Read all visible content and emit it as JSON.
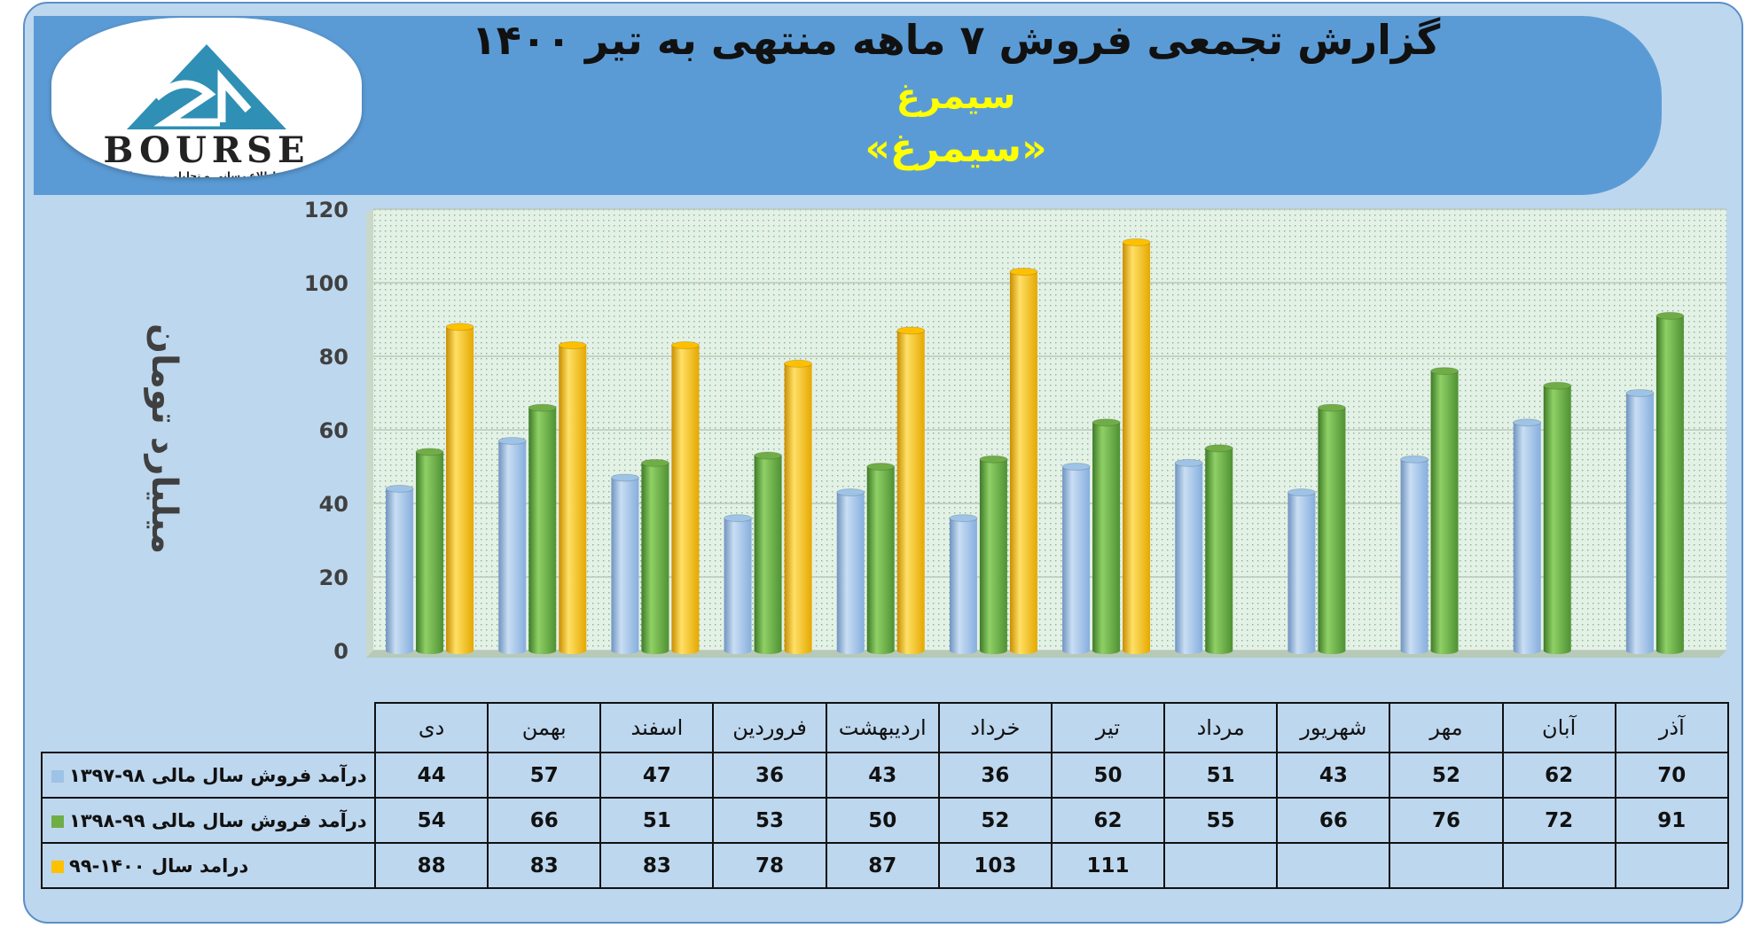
{
  "header": {
    "title": "گزارش تجمعی فروش ۷ ماهه منتهی به تیر ۱۴۰۰",
    "subtitle": "سیمرغ",
    "ticker": "«سیمرغ»"
  },
  "logo": {
    "wordmark": "BOURSE",
    "tagline": "پایگاه اطلاع رسانی و تحلیلی بورس ایران"
  },
  "colors": {
    "frame": "#bdd7ee",
    "banner": "#5b9bd5",
    "series_1": "#9dc3e6",
    "series_2": "#70ad47",
    "series_3": "#ffc000"
  },
  "chart_data": {
    "type": "bar",
    "categories": [
      "دی",
      "بهمن",
      "اسفند",
      "فروردین",
      "اردیبهشت",
      "خرداد",
      "تیر",
      "مرداد",
      "شهریور",
      "مهر",
      "آبان",
      "آذر"
    ],
    "series": [
      {
        "name": "درآمد فروش سال مالی ۹۸-۱۳۹۷",
        "color": "#9dc3e6",
        "values": [
          44,
          57,
          47,
          36,
          43,
          36,
          50,
          51,
          43,
          52,
          62,
          70
        ]
      },
      {
        "name": "درآمد فروش سال مالی ۹۹-۱۳۹۸",
        "color": "#70ad47",
        "values": [
          54,
          66,
          51,
          53,
          50,
          52,
          62,
          55,
          66,
          76,
          72,
          91
        ]
      },
      {
        "name": "درامد سال ۱۴۰۰-۹۹",
        "color": "#ffc000",
        "values": [
          88,
          83,
          83,
          78,
          87,
          103,
          111,
          null,
          null,
          null,
          null,
          null
        ]
      }
    ],
    "ylabel": "میلیارد تومان",
    "ylim": [
      0,
      120
    ],
    "yticks": [
      0,
      20,
      40,
      60,
      80,
      100,
      120
    ],
    "grid": true,
    "legend": "in data table (left)"
  }
}
